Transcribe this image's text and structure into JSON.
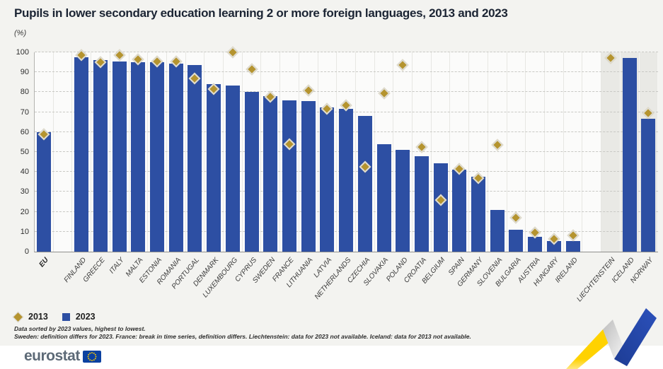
{
  "title": "Pupils in lower secondary education learning 2 or more foreign languages, 2013 and 2023",
  "unit_label": "(%)",
  "colors": {
    "bar_2023": "#2d4fa3",
    "marker_2013": "#b5942f",
    "shaded_band": "#e9e9e5",
    "page_background": "#f3f3f0",
    "eu_flag_blue": "#0b41a0",
    "flag_star_yellow": "#ffcc00",
    "ribbon_yellow": "#ffd200",
    "ribbon_blue": "#2446a8"
  },
  "legend": [
    {
      "label": "2013",
      "marker": "diamond",
      "color": "#b5942f"
    },
    {
      "label": "2023",
      "marker": "square",
      "color": "#2d4fa3"
    }
  ],
  "footnotes": [
    "Data sorted by 2023 values, highest to lowest.",
    "Sweden: definition differs for 2023. France: break in time series, definition differs. Liechtenstein: data for 2023 not available. Iceland: data for 2013 not available."
  ],
  "footer": {
    "brand": "eurostat"
  },
  "chart_data": {
    "type": "bar",
    "title": "Pupils in lower secondary education learning 2 or more foreign languages, 2013 and 2023",
    "xlabel": "",
    "ylabel": "(%)",
    "ylim": [
      0,
      100
    ],
    "ytick_interval": 10,
    "grid": true,
    "legend_position": "bottom-left",
    "categories": [
      "EU",
      "FINLAND",
      "GREECE",
      "ITALY",
      "MALTA",
      "ESTONIA",
      "ROMANIA",
      "PORTUGAL",
      "DENMARK",
      "LUXEMBOURG",
      "CYPRUS",
      "SWEDEN",
      "FRANCE",
      "LITHUANIA",
      "LATVIA",
      "NETHERLANDS",
      "CZECHIA",
      "SLOVAKIA",
      "POLAND",
      "CROATIA",
      "BELGIUM",
      "SPAIN",
      "GERMANY",
      "SLOVENIA",
      "BULGARIA",
      "AUSTRIA",
      "HUNGARY",
      "IRELAND",
      "LIECHTENSTEIN",
      "ICELAND",
      "NORWAY"
    ],
    "series": [
      {
        "name": "2013",
        "style": "diamond-marker",
        "color": "#b5942f",
        "values": [
          59,
          98.5,
          95,
          98.5,
          96.5,
          95.5,
          95.5,
          87,
          81.5,
          100,
          91.5,
          77.5,
          54,
          81,
          71.5,
          73.5,
          42.5,
          79.5,
          93.5,
          52.5,
          26,
          41.5,
          37,
          53.5,
          17,
          9.5,
          6.5,
          8,
          97,
          null,
          69.5
        ]
      },
      {
        "name": "2023",
        "style": "bar",
        "color": "#2d4fa3",
        "values": [
          60,
          97.5,
          96,
          95.5,
          95,
          95,
          94.5,
          93.5,
          84,
          83.5,
          80,
          78,
          76,
          75.5,
          72.5,
          71.5,
          68,
          54,
          51,
          48,
          44.5,
          41,
          37.5,
          21,
          11,
          7.5,
          5.5,
          5.5,
          null,
          97,
          66.5
        ]
      }
    ],
    "shaded_categories": [
      "LIECHTENSTEIN",
      "ICELAND",
      "NORWAY"
    ],
    "spacers_after": [
      "EU",
      "IRELAND"
    ]
  }
}
